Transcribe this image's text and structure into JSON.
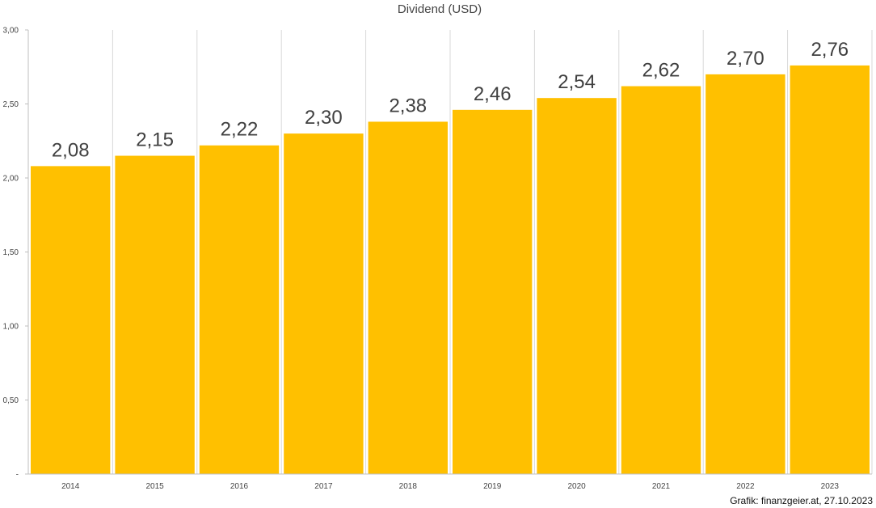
{
  "chart_data": {
    "type": "bar",
    "title": "Dividend (USD)",
    "categories": [
      "2014",
      "2015",
      "2016",
      "2017",
      "2018",
      "2019",
      "2020",
      "2021",
      "2022",
      "2023"
    ],
    "values": [
      2.08,
      2.15,
      2.22,
      2.3,
      2.38,
      2.46,
      2.54,
      2.62,
      2.7,
      2.76
    ],
    "data_labels": [
      "2,08",
      "2,15",
      "2,22",
      "2,30",
      "2,38",
      "2,46",
      "2,54",
      "2,62",
      "2,70",
      "2,76"
    ],
    "y_ticks": [
      0,
      0.5,
      1.0,
      1.5,
      2.0,
      2.5,
      3.0
    ],
    "y_tick_labels": [
      "-",
      "0,50",
      "1,00",
      "1,50",
      "2,00",
      "2,50",
      "3,00"
    ],
    "ylim": [
      0,
      3.0
    ],
    "grid": true,
    "bar_color": "#FFC000",
    "credit": "Grafik: finanzgeier.at, 27.10.2023"
  }
}
